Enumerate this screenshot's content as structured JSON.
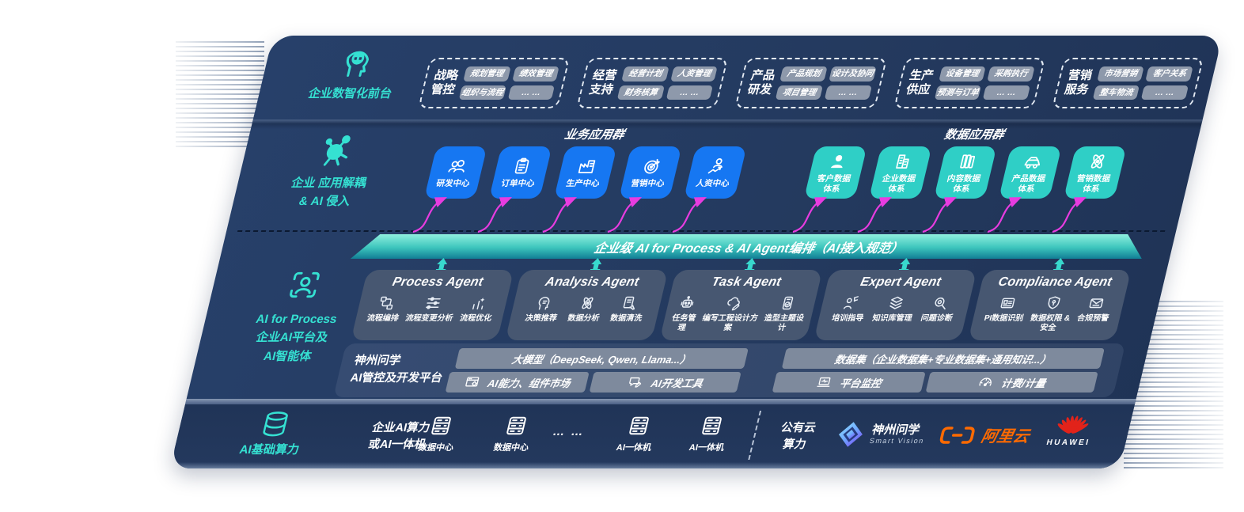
{
  "colors": {
    "panel_bg": "#243A5F",
    "accent_cyan": "#35E1D2",
    "blue_box": "#1677F2",
    "teal_box": "#2FCFC6",
    "magenta_arrow": "#E83CE0",
    "teal_arrow": "#38D9CE",
    "aliyun_orange": "#FF6A00",
    "huawei_red": "#E2231A"
  },
  "front_layer": {
    "label": "企业数智化前台",
    "icon": "head-brain-icon",
    "groups": [
      {
        "title": "战略\n管控",
        "items": [
          "规划管理",
          "绩效管理",
          "组织与流程",
          "… …"
        ]
      },
      {
        "title": "经营\n支持",
        "items": [
          "经营计划",
          "人资管理",
          "财务核算",
          "… …"
        ]
      },
      {
        "title": "产品\n研发",
        "items": [
          "产品规划",
          "设计及协同",
          "项目管理",
          "… …"
        ]
      },
      {
        "title": "生产\n供应",
        "items": [
          "设备管理",
          "采购执行",
          "预测与订单",
          "… …"
        ]
      },
      {
        "title": "营销\n服务",
        "items": [
          "市场营销",
          "客户关系",
          "整车物流",
          "… …"
        ]
      }
    ]
  },
  "app_layer": {
    "label": "企业 应用解耦\n& AI 侵入",
    "icon": "molecule-icon",
    "business_group": {
      "title": "业务应用群",
      "boxes": [
        {
          "label": "研发中心",
          "icon": "team-icon"
        },
        {
          "label": "订单中心",
          "icon": "clipboard-icon"
        },
        {
          "label": "生产中心",
          "icon": "factory-icon"
        },
        {
          "label": "营销中心",
          "icon": "target-icon"
        },
        {
          "label": "人资中心",
          "icon": "person-chart-icon"
        }
      ]
    },
    "data_group": {
      "title": "数据应用群",
      "boxes": [
        {
          "label": "客户数据\n体系",
          "icon": "user-icon"
        },
        {
          "label": "企业数据\n体系",
          "icon": "building-icon"
        },
        {
          "label": "内容数据\n体系",
          "icon": "books-icon"
        },
        {
          "label": "产品数据\n体系",
          "icon": "car-icon"
        },
        {
          "label": "营销数据\n体系",
          "icon": "atom-icon"
        }
      ]
    }
  },
  "orchestration_bar": {
    "label": "企业级 AI for Process & AI Agent编排（AI接入规范）"
  },
  "ai_layer": {
    "label": "AI for Process\n企业AI平台及\nAI智能体",
    "icon": "scan-person-icon",
    "agents": [
      {
        "title": "Process Agent",
        "items": [
          {
            "label": "流程编排",
            "icon": "workflow-icon"
          },
          {
            "label": "流程变更分析",
            "icon": "sliders-icon"
          },
          {
            "label": "流程优化",
            "icon": "optimize-icon"
          }
        ]
      },
      {
        "title": "Analysis Agent",
        "items": [
          {
            "label": "决策推荐",
            "icon": "head-idea-icon"
          },
          {
            "label": "数据分析",
            "icon": "atom-icon"
          },
          {
            "label": "数据清洗",
            "icon": "doc-clean-icon"
          }
        ]
      },
      {
        "title": "Task Agent",
        "items": [
          {
            "label": "任务管理",
            "icon": "robot-icon"
          },
          {
            "label": "编写工程设计方案",
            "icon": "cloud-edit-icon"
          },
          {
            "label": "造型主题设计",
            "icon": "design-check-icon"
          }
        ]
      },
      {
        "title": "Expert Agent",
        "items": [
          {
            "label": "培训指导",
            "icon": "mentor-icon"
          },
          {
            "label": "知识库管理",
            "icon": "layers-icon"
          },
          {
            "label": "问题诊断",
            "icon": "diagnose-icon"
          }
        ]
      },
      {
        "title": "Compliance Agent",
        "items": [
          {
            "label": "PI数据识别",
            "icon": "id-card-icon"
          },
          {
            "label": "数据权限 &\n安全",
            "icon": "shield-lock-icon"
          },
          {
            "label": "合规预警",
            "icon": "alert-mail-icon"
          }
        ]
      }
    ]
  },
  "platform": {
    "label": "神州问学\nAI管控及开发平台",
    "model_bar": "大模型（DeepSeek, Qwen, Llama...）",
    "dataset_bar": "数据集（企业数据集+专业数据集+通用知识...）",
    "tool_boxes": [
      {
        "label": "AI能力、组件市场",
        "icon": "market-icon"
      },
      {
        "label": "AI开发工具",
        "icon": "devtools-icon"
      },
      {
        "label": "平台监控",
        "icon": "monitor-icon"
      },
      {
        "label": "计费/计量",
        "icon": "gauge-icon"
      }
    ]
  },
  "infra_layer": {
    "label": "AI基础算力",
    "icon": "database-icon",
    "compute_label": "企业AI算力\n或AI一体机",
    "nodes": [
      {
        "label": "数据中心",
        "icon": "server-icon"
      },
      {
        "label": "数据中心",
        "icon": "server-icon"
      }
    ],
    "ellipsis": "… …",
    "nodes2": [
      {
        "label": "AI一体机",
        "icon": "server-icon"
      },
      {
        "label": "AI一体机",
        "icon": "server-icon"
      }
    ],
    "public_cloud": "公有云\n算力",
    "logos": {
      "smartvision": {
        "title": "神州问学",
        "subtitle": "Smart Vision"
      },
      "aliyun": {
        "title": "阿里云"
      },
      "huawei": {
        "title": "HUAWEI"
      }
    }
  }
}
